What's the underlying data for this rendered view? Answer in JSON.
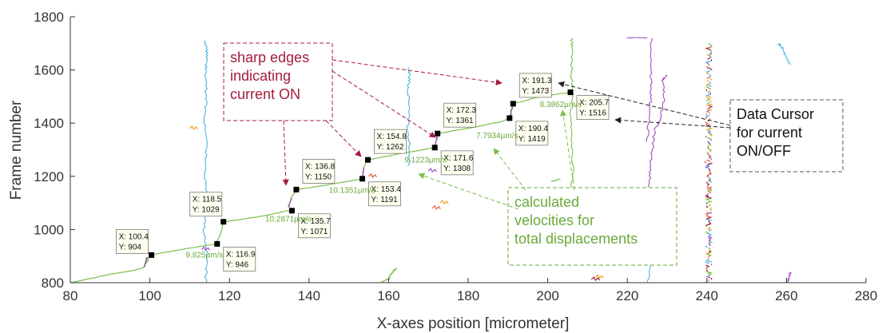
{
  "chart_data": {
    "type": "line",
    "xlabel": "X-axes position [micrometer]",
    "ylabel": "Frame number",
    "xlim": [
      80,
      280
    ],
    "ylim": [
      800,
      1800
    ],
    "xticks": [
      80,
      100,
      120,
      140,
      160,
      180,
      200,
      220,
      240,
      260,
      280
    ],
    "yticks": [
      800,
      1000,
      1200,
      1400,
      1600,
      1800
    ],
    "grid": false,
    "main_trace": {
      "color": "#7bbf4a",
      "x": [
        80,
        84,
        90,
        96,
        98.5,
        99.3,
        98.8,
        100.4,
        104,
        110,
        116.9,
        118.5,
        124,
        130,
        134.6,
        135.7,
        134.9,
        135.6,
        136.8,
        144,
        153.4,
        153.8,
        154.8,
        162,
        171.6,
        172.3,
        180,
        188,
        190.4,
        191.3,
        198,
        205.7
      ],
      "y": [
        800,
        812,
        832,
        846,
        858,
        896,
        870,
        904,
        915,
        930,
        946,
        1029,
        1040,
        1055,
        1071,
        1071,
        1085,
        1118,
        1150,
        1166,
        1191,
        1232,
        1262,
        1283,
        1308,
        1361,
        1381,
        1404,
        1419,
        1473,
        1500,
        1516
      ]
    },
    "data_cursors": [
      {
        "x": "100.4",
        "y": "904"
      },
      {
        "x": "116.9",
        "y": "946"
      },
      {
        "x": "118.5",
        "y": "1029"
      },
      {
        "x": "135.7",
        "y": "1071"
      },
      {
        "x": "136.8",
        "y": "1150"
      },
      {
        "x": "153.4",
        "y": "1191"
      },
      {
        "x": "154.8",
        "y": "1262"
      },
      {
        "x": "171.6",
        "y": "1308"
      },
      {
        "x": "172.3",
        "y": "1361"
      },
      {
        "x": "190.4",
        "y": "1419"
      },
      {
        "x": "191.3",
        "y": "1473"
      },
      {
        "x": "205.7",
        "y": "1516"
      }
    ],
    "velocity_labels": [
      {
        "text": "9.825µm/s",
        "x": 109,
        "y": 895
      },
      {
        "text": "10.2871µm/s",
        "x": 129,
        "y": 1030
      },
      {
        "text": "10.1351µm/s",
        "x": 145,
        "y": 1138
      },
      {
        "text": "9.1223µm/s",
        "x": 164,
        "y": 1252
      },
      {
        "text": "7.7934µm/s",
        "x": 182,
        "y": 1344
      },
      {
        "text": "8.3862µm/s",
        "x": 198,
        "y": 1460
      }
    ],
    "background_traces": [
      {
        "color": "#4bb4e6",
        "x": [
          114,
          114.5,
          113.6,
          114.4,
          113.8,
          114.3,
          113.7,
          114.2,
          114,
          114.4,
          113.9
        ],
        "y": [
          800,
          900,
          1000,
          1100,
          1200,
          1300,
          1400,
          1500,
          1600,
          1660,
          1710
        ]
      },
      {
        "color": "#4bb4e6",
        "x": [
          165,
          165.4,
          164.7,
          165.3,
          164.9,
          165.2,
          165
        ],
        "y": [
          1240,
          1300,
          1380,
          1450,
          1520,
          1570,
          1610
        ]
      },
      {
        "color": "#7bbf4a",
        "x": [
          206,
          206.3,
          205.8,
          206.2,
          205.9,
          206.1,
          206
        ],
        "y": [
          1100,
          1250,
          1400,
          1500,
          1600,
          1680,
          1720
        ]
      },
      {
        "color": "#4bb4e6",
        "x": [
          225,
          226,
          228,
          230,
          231,
          232,
          231.5,
          232
        ],
        "y": [
          800,
          880,
          950,
          1020,
          1080,
          1120,
          1140,
          1160
        ]
      },
      {
        "color": "#a04ec0",
        "x": [
          225.5,
          225.8,
          226.2,
          227,
          228.5,
          229.3,
          228.8,
          230
        ],
        "y": [
          1160,
          1230,
          1300,
          1380,
          1420,
          1500,
          1560,
          1580
        ]
      },
      {
        "color": "#a04ec0",
        "x": [
          225,
          225.6,
          226,
          225.8,
          226.2
        ],
        "y": [
          1330,
          1460,
          1510,
          1620,
          1720
        ]
      },
      {
        "color": "#a04ec0",
        "x": [
          220,
          222,
          224,
          225
        ],
        "y": [
          1720,
          1722,
          1721,
          1720
        ]
      },
      {
        "color": "#4bb4e6",
        "x": [
          258,
          259,
          260,
          261
        ],
        "y": [
          1700,
          1680,
          1640,
          1620
        ]
      },
      {
        "color": "#a04ec0",
        "x": [
          260,
          260.5,
          261
        ],
        "y": [
          800,
          815,
          840
        ]
      },
      {
        "color": "#7bbf4a",
        "x": [
          158,
          160,
          161,
          162
        ],
        "y": [
          800,
          815,
          840,
          855
        ]
      },
      {
        "color": "#7bbf4a",
        "x": [
          201,
          202,
          203
        ],
        "y": [
          1180,
          1185,
          1190
        ]
      }
    ],
    "cluster_trace": {
      "x_center": 240.5,
      "y_range": [
        800,
        1700
      ],
      "colors": [
        "#a51c3a",
        "#a04ec0",
        "#f0a020",
        "#4bb4e6",
        "#7bbf4a",
        "#e06030"
      ]
    },
    "small_marks": [
      {
        "color": "#f0a020",
        "x": 111,
        "y": 1380
      },
      {
        "color": "#e06030",
        "x": 156,
        "y": 1200
      },
      {
        "color": "#a04ec0",
        "x": 171,
        "y": 1220
      },
      {
        "color": "#e06030",
        "x": 172,
        "y": 1080
      },
      {
        "color": "#f0a020",
        "x": 174,
        "y": 1100
      },
      {
        "color": "#a51c3a",
        "x": 212,
        "y": 812
      },
      {
        "color": "#f0a020",
        "x": 213,
        "y": 820
      },
      {
        "color": "#a04ec0",
        "x": 114,
        "y": 925
      },
      {
        "color": "#4bb4e6",
        "x": 200,
        "y": 950
      },
      {
        "color": "#7bbf4a",
        "x": 201,
        "y": 990
      }
    ],
    "annotations": {
      "sharp_edges": {
        "lines": [
          "sharp edges",
          "indicating",
          "current ON"
        ],
        "color": "#a51c3a"
      },
      "data_cursor": {
        "lines": [
          "Data Cursor",
          "for current",
          "ON/OFF"
        ],
        "color": "#111111"
      },
      "velocities": {
        "lines": [
          "calculated",
          "velocities for",
          "total displacements"
        ],
        "color": "#6aaa3a"
      }
    }
  }
}
